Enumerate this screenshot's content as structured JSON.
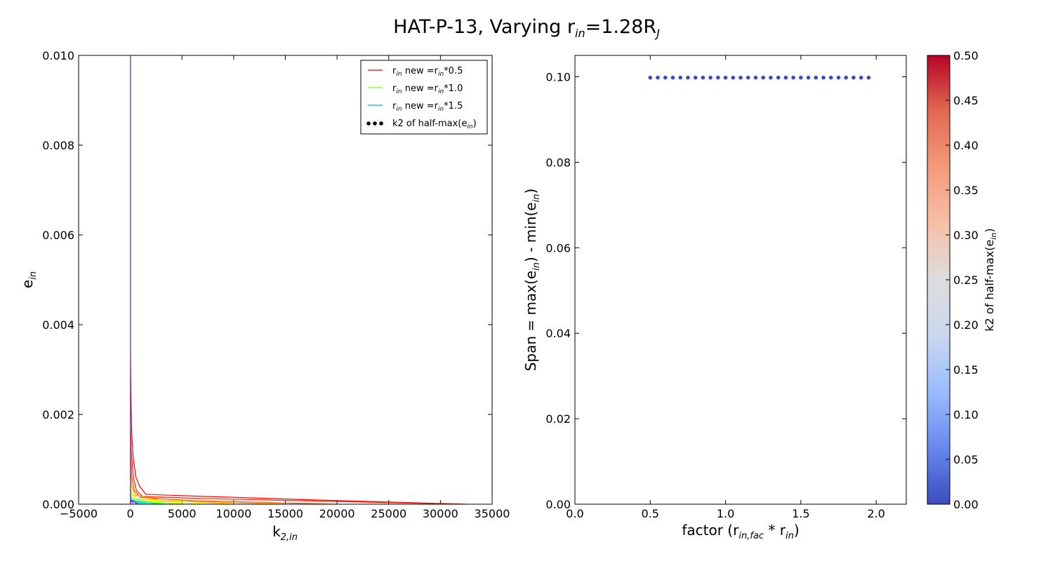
{
  "figure": {
    "title_main": "HAT-P-13, Varying r",
    "title_sub": "in",
    "title_value": "=1.28R",
    "title_sub2": "J"
  },
  "chart_data": [
    {
      "type": "line",
      "xlabel": "k",
      "xlabel_sub": "2,in",
      "ylabel": "e",
      "ylabel_sub": "in",
      "xlim": [
        -5000,
        35000
      ],
      "ylim": [
        0,
        0.01
      ],
      "xticks": [
        "−5000",
        "0",
        "5000",
        "10000",
        "15000",
        "20000",
        "25000",
        "30000",
        "35000"
      ],
      "yticks": [
        "0.000",
        "0.002",
        "0.004",
        "0.006",
        "0.008",
        "0.010"
      ],
      "legend": {
        "placement": "top-right",
        "entries": [
          {
            "prefix": "r",
            "sub": "in",
            "mid": " new =r",
            "sub2": "in",
            "suffix": "*0.5",
            "color": "#ff0000",
            "kind": "line"
          },
          {
            "prefix": "r",
            "sub": "in",
            "mid": " new =r",
            "sub2": "in",
            "suffix": "*1.0",
            "color": "#7fff00",
            "kind": "line"
          },
          {
            "prefix": "r",
            "sub": "in",
            "mid": " new =r",
            "sub2": "in",
            "suffix": "*1.5",
            "color": "#00b2ff",
            "kind": "line"
          },
          {
            "prefix": "k2 of half-max(e",
            "sub": "in",
            "mid": ")",
            "sub2": "",
            "suffix": "",
            "color": "#000000",
            "kind": "dots"
          }
        ]
      },
      "series": [
        {
          "color": "#ff0000",
          "points": [
            [
              0,
              0.01
            ],
            [
              0,
              0.004
            ],
            [
              50,
              0.0025
            ],
            [
              150,
              0.0015
            ],
            [
              300,
              0.001
            ],
            [
              550,
              0.0006
            ],
            [
              900,
              0.0004
            ],
            [
              1500,
              0.00022
            ],
            [
              5000,
              0.00019
            ],
            [
              20000,
              8e-05
            ],
            [
              32500,
              0.0
            ]
          ]
        },
        {
          "color": "#ff2200",
          "points": [
            [
              0,
              0.01
            ],
            [
              0,
              0.002
            ],
            [
              80,
              0.0012
            ],
            [
              300,
              0.0006
            ],
            [
              600,
              0.0003
            ],
            [
              1200,
              0.00017
            ],
            [
              8000,
              0.00012
            ],
            [
              30000,
              1e-05
            ]
          ]
        },
        {
          "color": "#ff5000",
          "points": [
            [
              0,
              0.01
            ],
            [
              0,
              0.0012
            ],
            [
              150,
              0.0006
            ],
            [
              400,
              0.0003
            ],
            [
              1000,
              0.00015
            ],
            [
              6000,
              8e-05
            ],
            [
              20000,
              0.0
            ]
          ]
        },
        {
          "color": "#ff9900",
          "points": [
            [
              0,
              0.01
            ],
            [
              0,
              0.0008
            ],
            [
              150,
              0.0004
            ],
            [
              500,
              0.0002
            ],
            [
              3000,
              8e-05
            ],
            [
              15000,
              0.0
            ]
          ]
        },
        {
          "color": "#ffcc00",
          "points": [
            [
              0,
              0.01
            ],
            [
              0,
              0.0005
            ],
            [
              150,
              0.00025
            ],
            [
              600,
              0.00012
            ],
            [
              10000,
              0.0
            ]
          ]
        },
        {
          "color": "#d4ff00",
          "points": [
            [
              0,
              0.01
            ],
            [
              0,
              0.0004
            ],
            [
              120,
              0.0002
            ],
            [
              500,
              0.0001
            ],
            [
              7000,
              0.0
            ]
          ]
        },
        {
          "color": "#7fff00",
          "points": [
            [
              0,
              0.01
            ],
            [
              0,
              0.0003
            ],
            [
              100,
              0.00015
            ],
            [
              400,
              8e-05
            ],
            [
              5000,
              0.0
            ]
          ]
        },
        {
          "color": "#00ff44",
          "points": [
            [
              0,
              0.01
            ],
            [
              0,
              0.00025
            ],
            [
              80,
              0.00012
            ],
            [
              300,
              6e-05
            ],
            [
              3500,
              0.0
            ]
          ]
        },
        {
          "color": "#00ffaa",
          "points": [
            [
              0,
              0.01
            ],
            [
              0,
              0.0002
            ],
            [
              60,
              0.0001
            ],
            [
              2500,
              0.0
            ]
          ]
        },
        {
          "color": "#00e5ff",
          "points": [
            [
              0,
              0.01
            ],
            [
              0,
              0.00017
            ],
            [
              50,
              8e-05
            ],
            [
              1800,
              0.0
            ]
          ]
        },
        {
          "color": "#00b2ff",
          "points": [
            [
              0,
              0.01
            ],
            [
              0,
              0.00015
            ],
            [
              40,
              7e-05
            ],
            [
              1200,
              0.0
            ]
          ]
        },
        {
          "color": "#5500ff",
          "points": [
            [
              0,
              0.01
            ],
            [
              0,
              0.0001
            ],
            [
              700,
              0.0
            ]
          ]
        },
        {
          "color": "#ff00ff",
          "points": [
            [
              0,
              0.01
            ],
            [
              0,
              8e-05
            ],
            [
              300,
              0.0
            ]
          ]
        }
      ]
    },
    {
      "type": "scatter",
      "xlabel": "factor (r",
      "xlabel_sub": "in,fac",
      "xlabel_mid": " * r",
      "xlabel_sub2": "in",
      "xlabel_end": ")",
      "ylabel": "Span = max(e",
      "ylabel_sub": "in",
      "ylabel_mid": ") - min(e",
      "ylabel_sub2": "in",
      "ylabel_end": ")",
      "xlim": [
        0.0,
        2.2
      ],
      "ylim": [
        0.0,
        0.105
      ],
      "xticks": [
        "0.0",
        "0.5",
        "1.0",
        "1.5",
        "2.0"
      ],
      "yticks": [
        "0.00",
        "0.02",
        "0.04",
        "0.06",
        "0.08",
        "0.10"
      ],
      "x": [
        0.5,
        0.55,
        0.6,
        0.65,
        0.7,
        0.75,
        0.8,
        0.85,
        0.9,
        0.95,
        1.0,
        1.05,
        1.1,
        1.15,
        1.2,
        1.25,
        1.3,
        1.35,
        1.4,
        1.45,
        1.5,
        1.55,
        1.6,
        1.65,
        1.7,
        1.75,
        1.8,
        1.85,
        1.9,
        1.95
      ],
      "y": [
        0.0998,
        0.0998,
        0.0998,
        0.0998,
        0.0998,
        0.0998,
        0.0998,
        0.0998,
        0.0998,
        0.0998,
        0.0998,
        0.0998,
        0.0998,
        0.0998,
        0.0998,
        0.0998,
        0.0998,
        0.0998,
        0.0998,
        0.0998,
        0.0998,
        0.0998,
        0.0998,
        0.0998,
        0.0998,
        0.0998,
        0.0998,
        0.0998,
        0.0998,
        0.0998
      ],
      "marker_color": "#3b4cc0",
      "colorbar": {
        "label": "k2 of half-max(e",
        "label_sub": "in",
        "label_end": ")",
        "range": [
          0.0,
          0.5
        ],
        "ticks": [
          "0.00",
          "0.05",
          "0.10",
          "0.15",
          "0.20",
          "0.25",
          "0.30",
          "0.35",
          "0.40",
          "0.45",
          "0.50"
        ],
        "colormap": "coolwarm",
        "stops": [
          "#3b4cc0",
          "#6788ee",
          "#9abbff",
          "#c9d7f0",
          "#dddddd",
          "#f6bfa6",
          "#f49a7b",
          "#e26952",
          "#b40426"
        ]
      }
    }
  ]
}
